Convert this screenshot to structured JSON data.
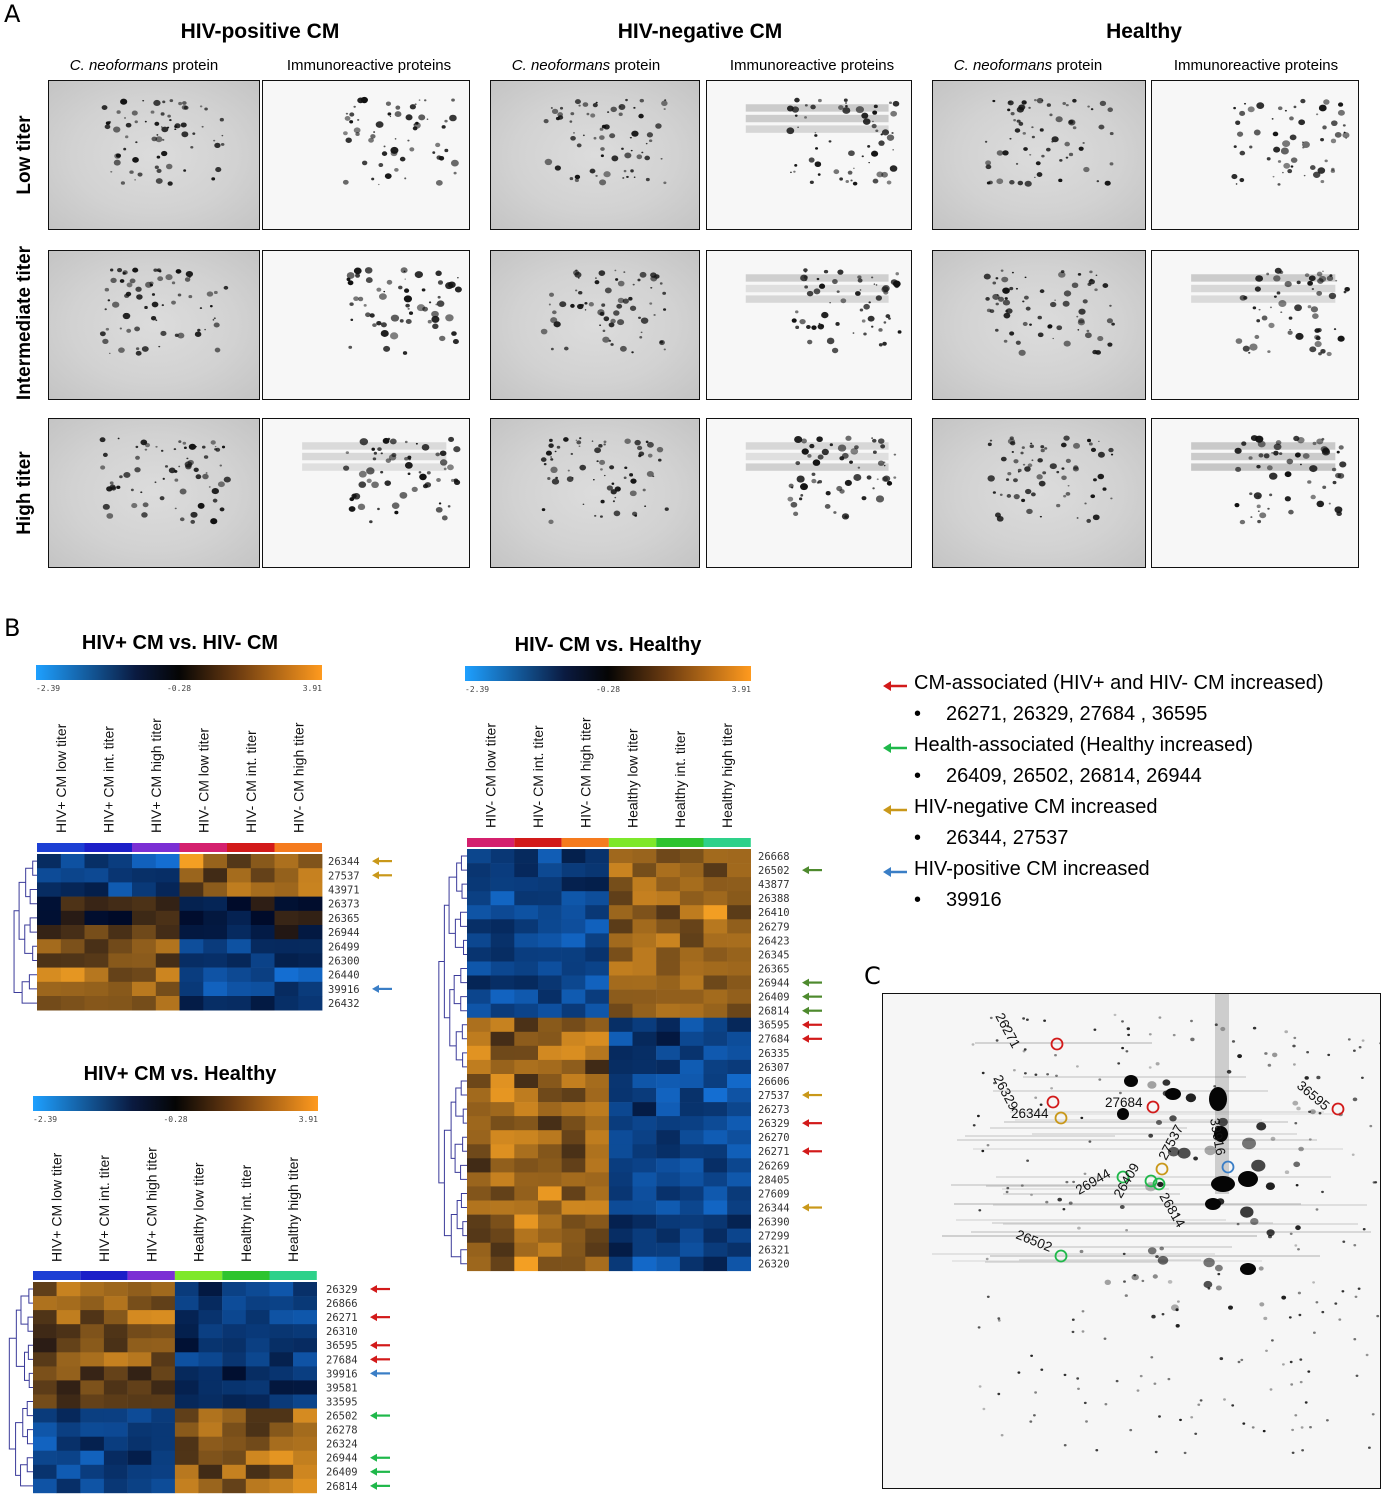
{
  "panels": {
    "a": "A",
    "b": "B",
    "c": "C"
  },
  "panel_a": {
    "groups": [
      {
        "title": "HIV-positive CM",
        "col1": "C. neoformans",
        "col1_suffix": " protein",
        "col2": "Immunoreactive proteins"
      },
      {
        "title": "HIV-negative CM",
        "col1": "C. neoformans",
        "col1_suffix": " protein",
        "col2": "Immunoreactive proteins"
      },
      {
        "title": "Healthy",
        "col1": "C. neoformans",
        "col1_suffix": " protein",
        "col2": "Immunoreactive proteins"
      }
    ],
    "rows": [
      "Low titer",
      "Intermediate titer",
      "High titer"
    ]
  },
  "heatmaps": {
    "scale": {
      "min": "-2.39",
      "mid": "-0.28",
      "max": "3.91"
    },
    "hm1": {
      "title": "HIV+ CM vs. HIV- CM",
      "columns": [
        "HIV+ CM low titer",
        "HIV+ CM int. titer",
        "HIV+ CM high titer",
        "HIV- CM low titer",
        "HIV- CM int. titer",
        "HIV- CM high titer"
      ],
      "column_colors": [
        "#1d3fd4",
        "#1c1fc8",
        "#7b2fd4",
        "#d4206e",
        "#d21a1a",
        "#f57b1e"
      ],
      "rows": [
        "26344",
        "27537",
        "43971",
        "26373",
        "26365",
        "26944",
        "26499",
        "26300",
        "26440",
        "39916",
        "26432"
      ],
      "arrows": {
        "26344": "#c9981a",
        "27537": "#c9981a",
        "39916": "#3a7ec6"
      }
    },
    "hm2": {
      "title": "HIV- CM vs. Healthy",
      "columns": [
        "HIV- CM low titer",
        "HIV- CM int. titer",
        "HIV- CM high titer",
        "Healthy low titer",
        "Healthy int. titer",
        "Healthy high titer"
      ],
      "column_colors": [
        "#d4206e",
        "#d21a1a",
        "#f57b1e",
        "#7ee82a",
        "#2ec42e",
        "#2ed18a"
      ],
      "rows": [
        "26668",
        "26502",
        "43877",
        "26388",
        "26410",
        "26279",
        "26423",
        "26345",
        "26365",
        "26944",
        "26409",
        "26814",
        "36595",
        "27684",
        "26335",
        "26307",
        "26606",
        "27537",
        "26273",
        "26329",
        "26270",
        "26271",
        "26269",
        "28405",
        "27609",
        "26344",
        "26390",
        "27299",
        "26321",
        "26320"
      ],
      "arrows": {
        "26502": "#4e8a2e",
        "26944": "#4e8a2e",
        "26409": "#4e8a2e",
        "26814": "#4e8a2e",
        "36595": "#d21a1a",
        "27684": "#d21a1a",
        "27537": "#c9981a",
        "26329": "#d21a1a",
        "26271": "#d21a1a",
        "26344": "#c9981a"
      }
    },
    "hm3": {
      "title": "HIV+ CM vs. Healthy",
      "columns": [
        "HIV+ CM low titer",
        "HIV+ CM int. titer",
        "HIV+ CM high titer",
        "Healthy low titer",
        "Healthy int. titer",
        "Healthy high titer"
      ],
      "column_colors": [
        "#1d3fd4",
        "#1c1fc8",
        "#7b2fd4",
        "#7ee82a",
        "#2ec42e",
        "#2ed18a"
      ],
      "rows": [
        "26329",
        "26866",
        "26271",
        "26310",
        "36595",
        "27684",
        "39916",
        "39581",
        "33595",
        "26502",
        "26278",
        "26324",
        "26944",
        "26409",
        "26814"
      ],
      "arrows": {
        "26329": "#d21a1a",
        "26271": "#d21a1a",
        "36595": "#d21a1a",
        "27684": "#d21a1a",
        "39916": "#3a7ec6",
        "26502": "#1fb84a",
        "26944": "#1fb84a",
        "26409": "#1fb84a",
        "26814": "#1fb84a"
      }
    }
  },
  "legend": [
    {
      "color": "#d21a1a",
      "label": "CM-associated (HIV+ and HIV- CM increased)",
      "ids": "26271, 26329, 27684 , 36595"
    },
    {
      "color": "#1fb84a",
      "label": "Health-associated (Healthy increased)",
      "ids": "26409, 26502, 26814, 26944"
    },
    {
      "color": "#c9981a",
      "label": "HIV-negative CM increased",
      "ids": "26344, 27537"
    },
    {
      "color": "#3a7ec6",
      "label": "HIV-positive CM increased",
      "ids": "39916"
    }
  ],
  "panel_c": {
    "spots": [
      {
        "id": "26271",
        "color": "#d21a1a"
      },
      {
        "id": "26329",
        "color": "#d21a1a"
      },
      {
        "id": "26344",
        "color": "#c9981a"
      },
      {
        "id": "27684",
        "color": "#d21a1a"
      },
      {
        "id": "36595",
        "color": "#d21a1a"
      },
      {
        "id": "39916",
        "color": "#3a7ec6"
      },
      {
        "id": "27537",
        "color": "#c9981a"
      },
      {
        "id": "26944",
        "color": "#1fb84a"
      },
      {
        "id": "26409",
        "color": "#1fb84a"
      },
      {
        "id": "26814",
        "color": "#1fb84a"
      },
      {
        "id": "26502",
        "color": "#1fb84a"
      }
    ]
  }
}
